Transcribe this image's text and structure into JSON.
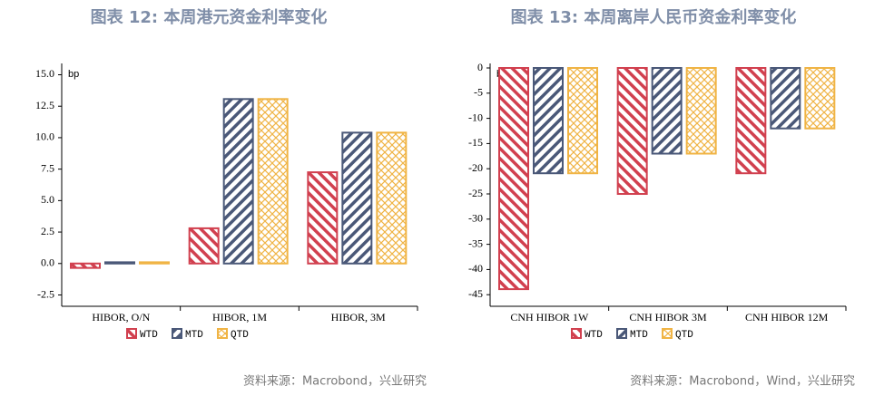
{
  "chart_data": [
    {
      "type": "bar",
      "title": "图表 12: 本周港元资金利率变化",
      "y_label": "bp",
      "categories": [
        "HIBOR, O/N",
        "HIBOR, 1M",
        "HIBOR, 3M"
      ],
      "series": [
        {
          "name": "WTD",
          "color": "#d1404f",
          "values": [
            -0.35,
            2.8,
            7.25
          ]
        },
        {
          "name": "MTD",
          "color": "#4a5878",
          "values": [
            0.1,
            13.07,
            10.4
          ]
        },
        {
          "name": "QTD",
          "color": "#f0b445",
          "values": [
            0.1,
            13.07,
            10.4
          ]
        }
      ],
      "ylim": [
        -3.4,
        15.9
      ],
      "yticks": [
        -2.5,
        {
          "value": 0,
          "label": "0.0"
        },
        2.5,
        {
          "value": 5,
          "label": "5.0"
        },
        7.5,
        {
          "value": 10,
          "label": "10.0"
        },
        12.5,
        {
          "value": 15,
          "label": "15.0"
        }
      ],
      "source": "资料来源：Macrobond，兴业研究"
    },
    {
      "type": "bar",
      "title": "图表 13: 本周离岸人民币资金利率变化",
      "y_label": "bp",
      "categories": [
        "CNH HIBOR 1W",
        "CNH HIBOR 3M",
        "CNH HIBOR 12M"
      ],
      "series": [
        {
          "name": "WTD",
          "color": "#d1404f",
          "values": [
            -43.9,
            -25,
            -20.9
          ]
        },
        {
          "name": "MTD",
          "color": "#4a5878",
          "values": [
            -20.9,
            -17,
            -12
          ]
        },
        {
          "name": "QTD",
          "color": "#f0b445",
          "values": [
            -20.9,
            -17,
            -12
          ]
        }
      ],
      "ylim": [
        -47.3,
        0.9
      ],
      "yticks": [
        0,
        -5,
        -10,
        -15,
        -20,
        -25,
        -30,
        -35,
        -40,
        -45
      ],
      "source": "资料来源：Macrobond，Wind，兴业研究"
    }
  ]
}
